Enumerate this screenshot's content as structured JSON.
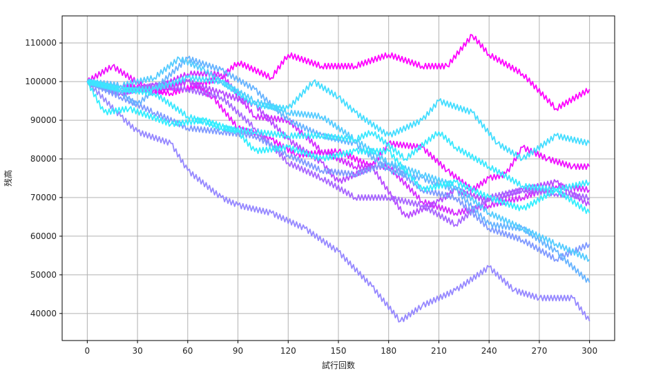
{
  "chart_data": {
    "type": "line",
    "title": "",
    "xlabel": "試行回数",
    "ylabel": "残高",
    "xlim": [
      -15,
      315
    ],
    "ylim": [
      33000,
      117000
    ],
    "xticks": [
      0,
      30,
      60,
      90,
      120,
      150,
      180,
      210,
      240,
      270,
      300
    ],
    "xtick_labels": [
      "0",
      "30",
      "60",
      "90",
      "120",
      "150",
      "180",
      "210",
      "240",
      "270",
      "300"
    ],
    "yticks": [
      40000,
      50000,
      60000,
      70000,
      80000,
      90000,
      100000,
      110000
    ],
    "ytick_labels": [
      "40000",
      "50000",
      "60000",
      "70000",
      "80000",
      "90000",
      "100000",
      "110000"
    ],
    "grid": true,
    "zigzag_step": 1000,
    "series": [
      {
        "color": "#ff00ff",
        "x": [
          0,
          20,
          50,
          80,
          90,
          110,
          120,
          140,
          160,
          180,
          200,
          215,
          230,
          240,
          260,
          280,
          300
        ],
        "y": [
          100000,
          99000,
          97000,
          101000,
          105000,
          101000,
          107000,
          104000,
          104000,
          107000,
          104000,
          104000,
          112000,
          107000,
          102000,
          93000,
          98000
        ]
      },
      {
        "color": "#ef10ff",
        "x": [
          0,
          15,
          40,
          60,
          75,
          90,
          110,
          125,
          150,
          170,
          180,
          200,
          215,
          230,
          240,
          250,
          260,
          275,
          290,
          300
        ],
        "y": [
          100000,
          104000,
          97000,
          100000,
          96000,
          88000,
          85000,
          81000,
          82000,
          78000,
          84000,
          83000,
          77000,
          72000,
          75000,
          76000,
          83000,
          80000,
          78000,
          78000
        ]
      },
      {
        "color": "#d42bff",
        "x": [
          0,
          20,
          40,
          60,
          80,
          100,
          120,
          140,
          160,
          180,
          200,
          220,
          240,
          260,
          280,
          300
        ],
        "y": [
          100000,
          98000,
          98000,
          102000,
          102000,
          91000,
          90000,
          82000,
          78000,
          78000,
          69000,
          66000,
          68000,
          70000,
          73000,
          72000
        ]
      },
      {
        "color": "#b84aff",
        "x": [
          0,
          20,
          40,
          60,
          80,
          100,
          120,
          140,
          150,
          170,
          190,
          210,
          220,
          240,
          260,
          280,
          300
        ],
        "y": [
          100000,
          97000,
          99000,
          100000,
          97000,
          94000,
          85000,
          79000,
          74000,
          78000,
          65000,
          69000,
          72000,
          69000,
          72000,
          74000,
          68000
        ]
      },
      {
        "color": "#a866ff",
        "x": [
          0,
          20,
          40,
          60,
          80,
          100,
          120,
          140,
          160,
          180,
          200,
          220,
          240,
          260,
          280,
          300
        ],
        "y": [
          100000,
          97000,
          99000,
          98000,
          96000,
          88000,
          79000,
          75000,
          70000,
          70000,
          68000,
          63000,
          70000,
          72000,
          71000,
          70000
        ]
      },
      {
        "color": "#9688ff",
        "x": [
          0,
          20,
          30,
          50,
          60,
          80,
          90,
          110,
          130,
          150,
          170,
          187,
          200,
          220,
          240,
          255,
          270,
          290,
          300
        ],
        "y": [
          100000,
          91000,
          87000,
          84000,
          77000,
          70000,
          68000,
          66000,
          62000,
          56000,
          47000,
          38000,
          42000,
          46000,
          52000,
          46000,
          44000,
          44000,
          38000
        ]
      },
      {
        "color": "#7f99ff",
        "x": [
          0,
          20,
          40,
          60,
          80,
          100,
          120,
          140,
          160,
          180,
          200,
          220,
          240,
          260,
          280,
          300
        ],
        "y": [
          100000,
          96000,
          92000,
          88000,
          87000,
          86000,
          81000,
          77000,
          76000,
          79000,
          72000,
          70000,
          62000,
          59000,
          54000,
          58000
        ]
      },
      {
        "color": "#66b3ff",
        "x": [
          0,
          20,
          30,
          40,
          60,
          80,
          100,
          120,
          140,
          160,
          180,
          200,
          220,
          240,
          260,
          280,
          300
        ],
        "y": [
          100000,
          97000,
          94000,
          98000,
          106000,
          103000,
          98000,
          90000,
          86000,
          84000,
          77000,
          75000,
          72000,
          63000,
          62000,
          56000,
          48000
        ]
      },
      {
        "color": "#55ccff",
        "x": [
          0,
          20,
          40,
          55,
          70,
          80,
          100,
          120,
          140,
          160,
          180,
          200,
          220,
          240,
          260,
          280,
          300
        ],
        "y": [
          100000,
          99000,
          101000,
          106000,
          103000,
          100000,
          95000,
          92000,
          91000,
          85000,
          79000,
          76000,
          73000,
          66000,
          62000,
          58000,
          54000
        ]
      },
      {
        "color": "#44ddff",
        "x": [
          0,
          20,
          40,
          60,
          80,
          100,
          120,
          135,
          150,
          160,
          180,
          200,
          210,
          230,
          245,
          260,
          280,
          300
        ],
        "y": [
          100000,
          98000,
          98000,
          101000,
          100000,
          94000,
          93000,
          100000,
          96000,
          92000,
          86000,
          90000,
          95000,
          92000,
          84000,
          80000,
          86000,
          84000
        ]
      },
      {
        "color": "#3ae8ff",
        "x": [
          0,
          20,
          40,
          60,
          80,
          100,
          120,
          140,
          160,
          170,
          190,
          210,
          220,
          240,
          260,
          280,
          300
        ],
        "y": [
          100000,
          98000,
          97000,
          91000,
          88000,
          87000,
          86000,
          86000,
          85000,
          87000,
          80000,
          87000,
          83000,
          78000,
          73000,
          72000,
          74000
        ]
      },
      {
        "color": "#33eeff",
        "x": [
          0,
          10,
          25,
          50,
          70,
          90,
          100,
          120,
          140,
          160,
          180,
          200,
          220,
          240,
          260,
          280,
          300
        ],
        "y": [
          100000,
          92000,
          93000,
          89000,
          90000,
          87000,
          82000,
          83000,
          80000,
          82000,
          82000,
          72000,
          74000,
          70000,
          67000,
          72000,
          66000
        ]
      }
    ]
  }
}
